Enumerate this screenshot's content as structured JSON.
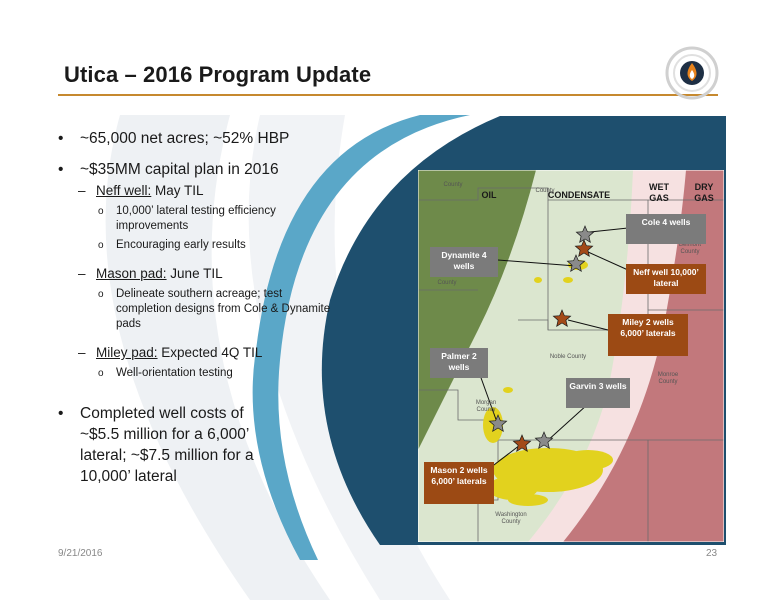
{
  "title": "Utica – 2016 Program Update",
  "bullets": {
    "acres": "~65,000 net acres; ~52% HBP",
    "capital": "~$35MM capital plan in 2016",
    "neff": {
      "label": "Neff well:",
      "rest": " May TIL",
      "subs": [
        "10,000’ lateral testing efficiency improvements",
        "Encouraging early results"
      ]
    },
    "mason": {
      "label": "Mason pad:",
      "rest": " June TIL",
      "subs": [
        "Delineate southern acreage; test completion designs from Cole & Dynamite pads"
      ]
    },
    "miley": {
      "label": "Miley pad:",
      "rest": " Expected 4Q TIL",
      "subs": [
        "Well-orientation testing"
      ]
    },
    "costs": "Completed well costs of ~$5.5 million for a 6,000’ lateral; ~$7.5 million for a 10,000’ lateral"
  },
  "map": {
    "zones": {
      "oil": "OIL",
      "condensate": "CONDENSATE",
      "wet_gas": "WET GAS",
      "dry_gas": "DRY GAS"
    },
    "labels": {
      "cole": "Cole 4 wells",
      "dynamite": "Dynamite 4 wells",
      "neff": "Neff well 10,000’ lateral",
      "miley": "Miley 2 wells 6,000’ laterals",
      "palmer": "Palmer 2 wells",
      "garvin": "Garvin 3 wells",
      "mason": "Mason 2 wells 6,000’ laterals"
    },
    "counties": {
      "c1": "County",
      "c2": "County",
      "c3": "County",
      "belmont": "Belmont County",
      "noble": "Noble County",
      "monroe": "Monroe County",
      "morgan": "Morgan County",
      "washington": "Washington County"
    },
    "colors": {
      "oil": "#6e8a4a",
      "condensate": "#dbe6cf",
      "wet_gas": "#f6e1e1",
      "dry_gas": "#c2787c",
      "gray_star": "#8a8a8a",
      "orange_star": "#a34a18",
      "acreage": "#e2d21e"
    }
  },
  "footer": {
    "date": "9/21/2016",
    "page": "23"
  }
}
